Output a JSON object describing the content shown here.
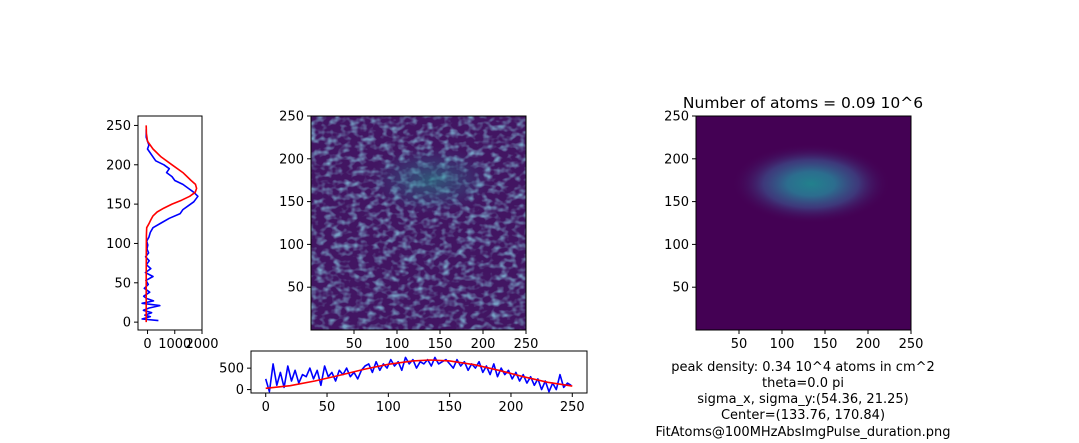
{
  "figure": {
    "fit_title": "Number of atoms = 0.09 10^6",
    "caption_lines": [
      "peak density: 0.34 10^4 atoms in cm^2",
      "theta=0.0 pi",
      "sigma_x, sigma_y:(54.36, 21.25)",
      "Center=(133.76, 170.84)",
      "FitAtoms@100MHzAbsImgPulse_duration.png"
    ]
  },
  "colors": {
    "data_line": "#0000ff",
    "fit_line": "#ff0000",
    "image_dark": "#440154",
    "image_mid": "#3b528b",
    "image_bright": "#21918c"
  },
  "chart_data": [
    {
      "type": "line",
      "name": "vertical-profile",
      "orientation": "vertical",
      "xlim": [
        -350,
        2000
      ],
      "ylim": [
        -10,
        262
      ],
      "xticks": [
        0,
        1000,
        2000
      ],
      "yticks": [
        0,
        50,
        100,
        150,
        200,
        250
      ],
      "series": [
        {
          "role": "data",
          "color": "#0000ff",
          "x": [
            400,
            -200,
            100,
            -100,
            150,
            -150,
            60,
            450,
            -200,
            220,
            -30,
            -140,
            80,
            -120,
            30,
            -60,
            200,
            -80,
            120,
            -40,
            60,
            -70,
            40,
            -20,
            10,
            -30,
            50,
            100,
            200,
            500,
            800,
            1200,
            1300,
            1500,
            1700,
            1850,
            1700,
            1500,
            1300,
            1000,
            900,
            700,
            800,
            600,
            300,
            200,
            100,
            0,
            50,
            -50,
            -50
          ],
          "y": [
            2,
            4,
            7,
            9,
            12,
            15,
            18,
            21,
            24,
            27,
            30,
            33,
            38,
            43,
            48,
            53,
            58,
            63,
            68,
            73,
            78,
            83,
            88,
            93,
            98,
            103,
            108,
            114,
            120,
            126,
            132,
            138,
            143,
            148,
            153,
            160,
            165,
            170,
            175,
            180,
            185,
            190,
            195,
            200,
            205,
            210,
            215,
            220,
            225,
            235,
            245
          ]
        },
        {
          "role": "fit",
          "color": "#ff0000",
          "x": [
            -50,
            -48,
            -45,
            -42,
            -30,
            50,
            120,
            200,
            350,
            600,
            900,
            1250,
            1550,
            1750,
            1800,
            1760,
            1600,
            1300,
            900,
            500,
            200,
            0,
            -40,
            -50
          ],
          "y": [
            0,
            50,
            90,
            110,
            120,
            125,
            130,
            135,
            140,
            145,
            150,
            155,
            160,
            165,
            170,
            175,
            180,
            190,
            200,
            210,
            220,
            230,
            240,
            250
          ]
        }
      ]
    },
    {
      "type": "heatmap",
      "name": "raw-absorption-image",
      "xlim": [
        0,
        250
      ],
      "ylim": [
        0,
        250
      ],
      "xticks": [
        50,
        100,
        150,
        200,
        250
      ],
      "yticks": [
        50,
        100,
        150,
        200,
        250
      ],
      "colormap": "viridis",
      "description_center": [
        140,
        175
      ],
      "description_sigma": [
        45,
        22
      ]
    },
    {
      "type": "line",
      "name": "horizontal-profile",
      "orientation": "horizontal",
      "xlim": [
        -12,
        262
      ],
      "ylim": [
        -80,
        900
      ],
      "xticks": [
        0,
        50,
        100,
        150,
        200,
        250
      ],
      "yticks": [
        0,
        500
      ],
      "series": [
        {
          "role": "data",
          "color": "#0000ff",
          "x": [
            0,
            3,
            6,
            9,
            12,
            15,
            18,
            21,
            24,
            27,
            30,
            33,
            36,
            39,
            42,
            45,
            48,
            51,
            54,
            57,
            60,
            63,
            66,
            69,
            72,
            75,
            78,
            81,
            84,
            87,
            90,
            93,
            96,
            99,
            102,
            105,
            108,
            111,
            114,
            117,
            120,
            123,
            126,
            129,
            132,
            135,
            138,
            141,
            144,
            147,
            150,
            153,
            156,
            159,
            162,
            165,
            168,
            171,
            174,
            177,
            180,
            183,
            186,
            189,
            192,
            195,
            198,
            201,
            204,
            207,
            210,
            213,
            216,
            219,
            222,
            225,
            228,
            231,
            234,
            237,
            240,
            243,
            246,
            249
          ],
          "y": [
            250,
            -50,
            600,
            100,
            400,
            50,
            550,
            200,
            450,
            150,
            350,
            300,
            500,
            250,
            450,
            100,
            550,
            300,
            400,
            200,
            450,
            350,
            500,
            300,
            400,
            250,
            450,
            550,
            600,
            400,
            650,
            450,
            600,
            500,
            700,
            550,
            650,
            450,
            750,
            600,
            700,
            500,
            650,
            600,
            700,
            550,
            750,
            600,
            650,
            700,
            600,
            500,
            700,
            550,
            650,
            450,
            600,
            500,
            650,
            400,
            550,
            350,
            600,
            300,
            500,
            350,
            450,
            250,
            400,
            200,
            350,
            150,
            300,
            100,
            250,
            0,
            200,
            -50,
            150,
            0,
            350,
            50,
            150,
            100
          ]
        },
        {
          "role": "fit",
          "color": "#ff0000",
          "x": [
            0,
            20,
            40,
            60,
            80,
            100,
            120,
            134,
            150,
            170,
            190,
            210,
            230,
            250
          ],
          "y": [
            30,
            90,
            200,
            330,
            470,
            590,
            670,
            690,
            670,
            580,
            450,
            300,
            170,
            80
          ]
        }
      ]
    },
    {
      "type": "heatmap",
      "name": "gaussian-fit-image",
      "title": "Number of atoms = 0.09 10^6",
      "xlim": [
        0,
        250
      ],
      "ylim": [
        0,
        250
      ],
      "xticks": [
        50,
        100,
        150,
        200,
        250
      ],
      "yticks": [
        50,
        100,
        150,
        200,
        250
      ],
      "colormap": "viridis",
      "center": [
        133.76,
        170.84
      ],
      "sigma": [
        54.36,
        21.25
      ]
    }
  ]
}
